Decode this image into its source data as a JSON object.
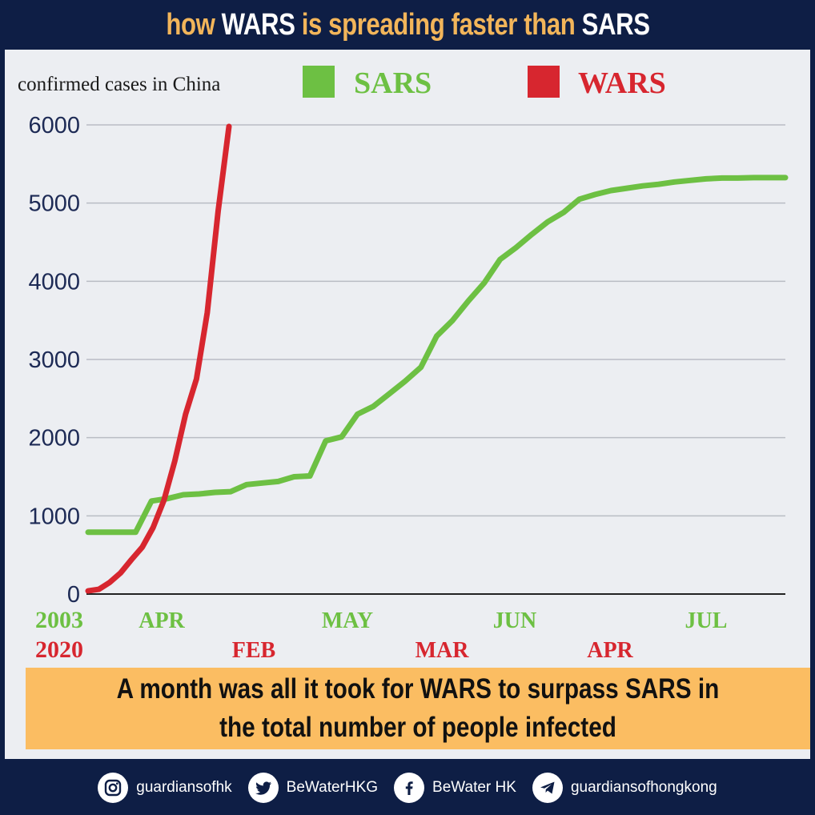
{
  "title": {
    "part1": "how ",
    "part2": "WARS",
    "part3": " is spreading faster than ",
    "part4": "SARS",
    "accent_color": "#f2b55a"
  },
  "legend": {
    "caption": "confirmed cases in China",
    "items": [
      {
        "label": "SARS",
        "color": "#6dc043"
      },
      {
        "label": "WARS",
        "color": "#d7262f"
      }
    ]
  },
  "chart_data": {
    "type": "line",
    "ylim": [
      0,
      6000
    ],
    "yticks": [
      "0",
      "1000",
      "2000",
      "3000",
      "4000",
      "5000",
      "6000"
    ],
    "grid": true,
    "x_axis_rows": [
      {
        "year": "2003",
        "color": "#6dc043",
        "months": [
          "APR",
          "MAY",
          "JUN",
          "JUL"
        ]
      },
      {
        "year": "2020",
        "color": "#d7262f",
        "months": [
          "FEB",
          "MAR",
          "APR"
        ]
      }
    ],
    "series": [
      {
        "name": "SARS",
        "color": "#6dc043",
        "x": [
          0,
          1,
          2,
          3,
          4,
          5,
          6,
          7,
          8,
          9,
          10,
          11,
          12,
          13,
          14,
          15,
          16,
          17,
          18,
          19,
          20,
          21,
          22,
          23,
          24,
          25,
          26,
          27,
          28,
          29,
          30,
          31,
          32,
          33,
          34,
          35,
          36,
          37,
          38,
          39,
          40,
          41,
          42,
          43,
          44
        ],
        "values": [
          790,
          790,
          790,
          790,
          1190,
          1220,
          1270,
          1280,
          1300,
          1310,
          1400,
          1420,
          1440,
          1500,
          1510,
          1960,
          2010,
          2300,
          2400,
          2560,
          2720,
          2900,
          3300,
          3500,
          3750,
          3980,
          4280,
          4430,
          4600,
          4760,
          4880,
          5050,
          5110,
          5160,
          5190,
          5220,
          5240,
          5270,
          5290,
          5310,
          5320,
          5320,
          5325,
          5325,
          5325
        ]
      },
      {
        "name": "WARS",
        "color": "#d7262f",
        "x": [
          0,
          1,
          2,
          3,
          4,
          5,
          6,
          7,
          8,
          9,
          10,
          11,
          12,
          13
        ],
        "values": [
          40,
          60,
          150,
          270,
          440,
          600,
          850,
          1200,
          1700,
          2300,
          2750,
          3600,
          4900,
          5980
        ]
      }
    ]
  },
  "banner": {
    "line1": "A month was all it took for WARS to surpass SARS in",
    "line2": "the total number of people infected"
  },
  "footer": {
    "instagram": "guardiansofhk",
    "twitter": "BeWaterHKG",
    "facebook": "BeWater HK",
    "telegram": "guardiansofhongkong"
  }
}
